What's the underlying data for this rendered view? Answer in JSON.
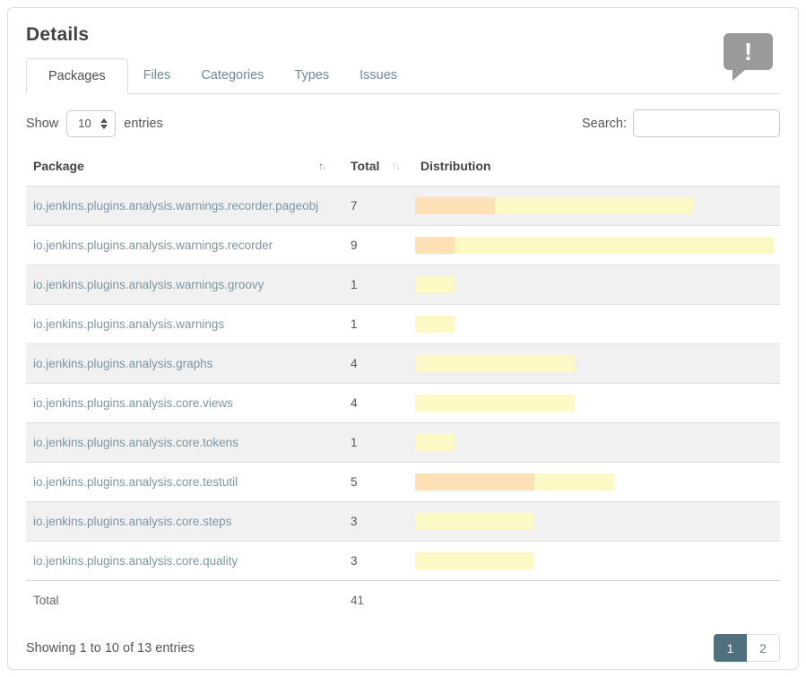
{
  "header": {
    "title": "Details",
    "icon": "speech-bubble-exclamation-icon"
  },
  "tabs": [
    {
      "label": "Packages",
      "active": true
    },
    {
      "label": "Files",
      "active": false
    },
    {
      "label": "Categories",
      "active": false
    },
    {
      "label": "Types",
      "active": false
    },
    {
      "label": "Issues",
      "active": false
    }
  ],
  "controls": {
    "show_label": "Show",
    "show_value": "10",
    "entries_label": "entries",
    "search_label": "Search:",
    "search_value": ""
  },
  "icons": {
    "sort_asc": "↑",
    "sort_desc": "↓"
  },
  "table": {
    "columns": [
      "Package",
      "Total",
      "Distribution"
    ],
    "max_units": 9,
    "rows": [
      {
        "package": "io.jenkins.plugins.analysis.warnings.recorder.pageobj",
        "total": 7,
        "bars": [
          {
            "type": "normal",
            "units": 2
          },
          {
            "type": "low",
            "units": 5
          }
        ]
      },
      {
        "package": "io.jenkins.plugins.analysis.warnings.recorder",
        "total": 9,
        "bars": [
          {
            "type": "normal",
            "units": 1
          },
          {
            "type": "low",
            "units": 8
          }
        ]
      },
      {
        "package": "io.jenkins.plugins.analysis.warnings.groovy",
        "total": 1,
        "bars": [
          {
            "type": "low",
            "units": 1
          }
        ]
      },
      {
        "package": "io.jenkins.plugins.analysis.warnings",
        "total": 1,
        "bars": [
          {
            "type": "low",
            "units": 1
          }
        ]
      },
      {
        "package": "io.jenkins.plugins.analysis.graphs",
        "total": 4,
        "bars": [
          {
            "type": "low",
            "units": 4
          }
        ]
      },
      {
        "package": "io.jenkins.plugins.analysis.core.views",
        "total": 4,
        "bars": [
          {
            "type": "low",
            "units": 4
          }
        ]
      },
      {
        "package": "io.jenkins.plugins.analysis.core.tokens",
        "total": 1,
        "bars": [
          {
            "type": "low",
            "units": 1
          }
        ]
      },
      {
        "package": "io.jenkins.plugins.analysis.core.testutil",
        "total": 5,
        "bars": [
          {
            "type": "normal",
            "units": 3
          },
          {
            "type": "low",
            "units": 2
          }
        ]
      },
      {
        "package": "io.jenkins.plugins.analysis.core.steps",
        "total": 3,
        "bars": [
          {
            "type": "low",
            "units": 3
          }
        ]
      },
      {
        "package": "io.jenkins.plugins.analysis.core.quality",
        "total": 3,
        "bars": [
          {
            "type": "low",
            "units": 3
          }
        ]
      }
    ],
    "footer": {
      "label": "Total",
      "total": "41"
    }
  },
  "colors": {
    "normal": "#fde0b4",
    "low": "#fcf9c5",
    "pagination_active": "#51707e",
    "link": "#7d96a5"
  },
  "pagination": {
    "info": "Showing 1 to 10 of 13 entries",
    "pages": [
      "1",
      "2"
    ],
    "active_page": "1"
  }
}
